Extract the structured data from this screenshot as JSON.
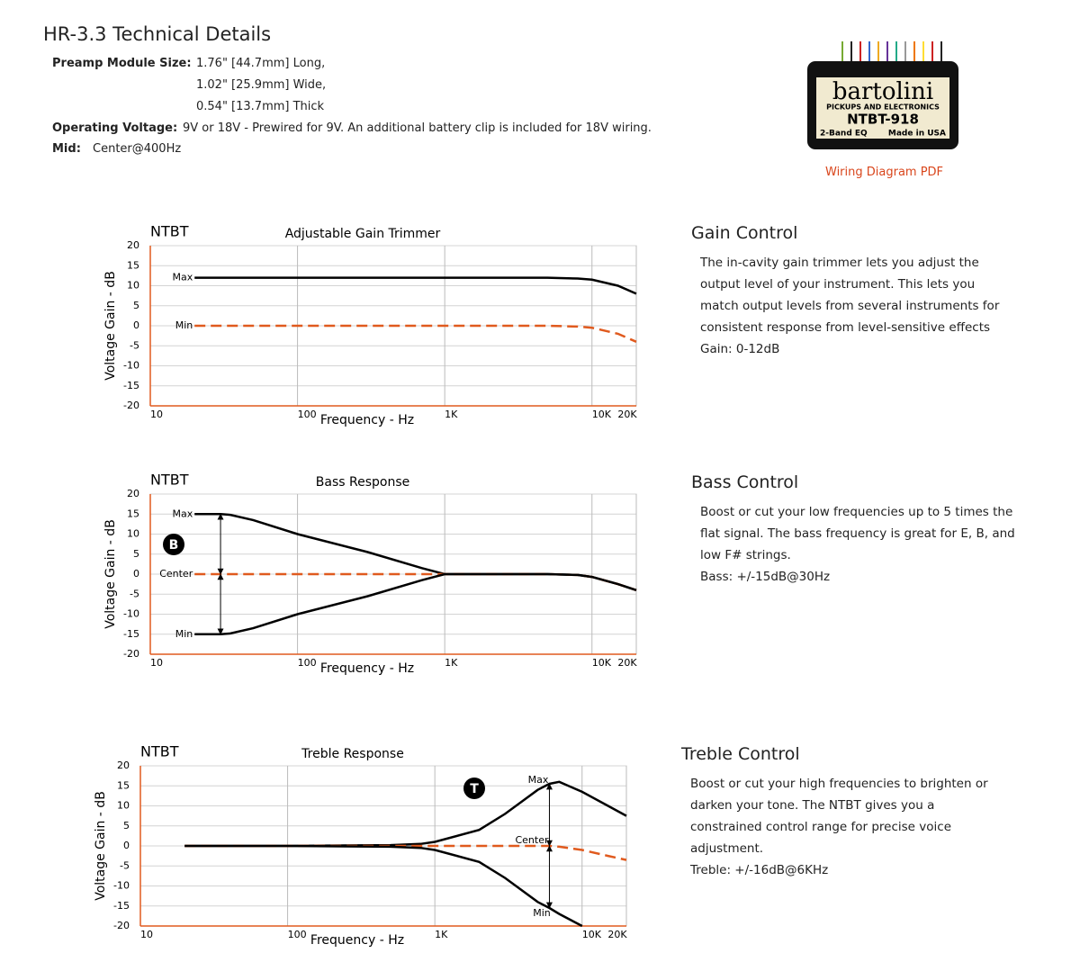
{
  "header": {
    "title": "HR-3.3 Technical Details"
  },
  "specs": [
    {
      "label": "Preamp Module Size:",
      "lines": [
        "1.76\" [44.7mm] Long,",
        "1.02\" [25.9mm] Wide,",
        "0.54\" [13.7mm] Thick"
      ]
    },
    {
      "label": "Operating Voltage:",
      "lines": [
        "9V or 18V - Prewired for 9V. An additional battery clip is included for 18V wiring."
      ]
    },
    {
      "label": "Mid:",
      "lines": [
        "Center@400Hz"
      ]
    }
  ],
  "product": {
    "brand": "bartolini",
    "tagline": "PICKUPS AND ELECTRONICS",
    "model": "NTBT-918",
    "eq": "2-Band EQ",
    "origin": "Made in USA",
    "link": "Wiring Diagram PDF"
  },
  "sections": [
    {
      "title": "Gain Control",
      "text": "The in-cavity gain trimmer lets you adjust the output level of your instrument. This lets you match output levels from several instruments for consistent response from level-sensitive effects",
      "spec": "Gain: 0-12dB"
    },
    {
      "title": "Bass Control",
      "text": "Boost or cut your low frequencies up to 5 times the flat signal. The bass frequency is great for E, B, and low F# strings.",
      "spec": "Bass: +/-15dB@30Hz"
    },
    {
      "title": "Treble Control",
      "text": "Boost or cut your high frequencies to brighten or darken your tone. The NTBT gives you a constrained control range for precise voice adjustment.",
      "spec": "Treble: +/-16dB@6KHz"
    }
  ],
  "chart_data": [
    {
      "type": "line",
      "label": "NTBT",
      "title": "Adjustable Gain Trimmer",
      "xlabel": "Frequency - Hz",
      "ylabel": "Voltage Gain - dB",
      "log_x": true,
      "grid": true,
      "x": [
        20,
        50,
        100,
        1000,
        5000,
        8000,
        10000,
        15000,
        20000
      ],
      "series": [
        {
          "name": "Max",
          "color": "#000000",
          "style": "solid",
          "values": [
            12,
            12,
            12,
            12,
            12,
            11.8,
            11.5,
            10,
            8
          ]
        },
        {
          "name": "Min",
          "color": "#e05a1e",
          "style": "dashed",
          "values": [
            0,
            0,
            0,
            0,
            0,
            -0.2,
            -0.5,
            -2,
            -4
          ]
        }
      ],
      "xlim": [
        10,
        20000
      ],
      "xticks": [
        10,
        100,
        {
          "value": 1000,
          "label": "1K"
        },
        {
          "value": 10000,
          "label": "10K"
        },
        {
          "value": 20000,
          "label": "20K"
        }
      ],
      "ylim": [
        -20,
        20
      ],
      "yticks": [
        -20,
        -15,
        -10,
        -5,
        0,
        5,
        10,
        15,
        20
      ]
    },
    {
      "type": "line",
      "label": "NTBT",
      "title": "Bass Response",
      "xlabel": "Frequency - Hz",
      "ylabel": "Voltage Gain - dB",
      "log_x": true,
      "grid": true,
      "badge": "B",
      "x": [
        20,
        30,
        35,
        50,
        100,
        300,
        700,
        1000,
        2000,
        5000,
        8000,
        10000,
        15000,
        20000
      ],
      "series": [
        {
          "name": "Max",
          "color": "#000000",
          "style": "solid",
          "values": [
            15,
            15,
            14.8,
            13.5,
            10,
            5.5,
            1.5,
            0,
            0,
            0,
            -0.2,
            -0.7,
            -2.5,
            -4
          ]
        },
        {
          "name": "Center",
          "color": "#e05a1e",
          "style": "dashed",
          "values": [
            0,
            0,
            0,
            0,
            0,
            0,
            0,
            0,
            0,
            0,
            -0.2,
            -0.7,
            -2.5,
            -4
          ]
        },
        {
          "name": "Min",
          "color": "#000000",
          "style": "solid",
          "values": [
            -15,
            -15,
            -14.8,
            -13.5,
            -10,
            -5.5,
            -1.5,
            0,
            0,
            0,
            -0.2,
            -0.7,
            -2.5,
            -4
          ]
        }
      ],
      "xlim": [
        10,
        20000
      ],
      "xticks": [
        10,
        100,
        {
          "value": 1000,
          "label": "1K"
        },
        {
          "value": 10000,
          "label": "10K"
        },
        {
          "value": 20000,
          "label": "20K"
        }
      ],
      "ylim": [
        -20,
        20
      ],
      "yticks": [
        -20,
        -15,
        -10,
        -5,
        0,
        5,
        10,
        15,
        20
      ]
    },
    {
      "type": "line",
      "label": "NTBT",
      "title": "Treble Response",
      "xlabel": "Frequency - Hz",
      "ylabel": "Voltage Gain - dB",
      "log_x": true,
      "grid": true,
      "badge": "T",
      "x": [
        20,
        100,
        500,
        800,
        1000,
        2000,
        3000,
        5000,
        6000,
        7000,
        10000,
        15000,
        20000
      ],
      "series": [
        {
          "name": "Max",
          "color": "#000000",
          "style": "solid",
          "values": [
            0,
            0,
            0.2,
            0.5,
            1,
            4,
            8,
            14,
            15.5,
            16,
            13.5,
            10,
            7.5
          ]
        },
        {
          "name": "Center",
          "color": "#e05a1e",
          "style": "dashed",
          "values": [
            0,
            0,
            0,
            0,
            0,
            0,
            0,
            0,
            0,
            -0.2,
            -1,
            -2.5,
            -3.5
          ]
        },
        {
          "name": "Min",
          "color": "#000000",
          "style": "solid",
          "values": [
            0,
            0,
            -0.2,
            -0.5,
            -1,
            -4,
            -8,
            -14,
            -15.5,
            -17,
            -20,
            null,
            null
          ]
        }
      ],
      "xlim": [
        10,
        20000
      ],
      "xticks": [
        10,
        100,
        {
          "value": 1000,
          "label": "1K"
        },
        {
          "value": 10000,
          "label": "10K"
        },
        {
          "value": 20000,
          "label": "20K"
        }
      ],
      "ylim": [
        -20,
        20
      ],
      "yticks": [
        -20,
        -15,
        -10,
        -5,
        0,
        5,
        10,
        15,
        20
      ]
    }
  ]
}
